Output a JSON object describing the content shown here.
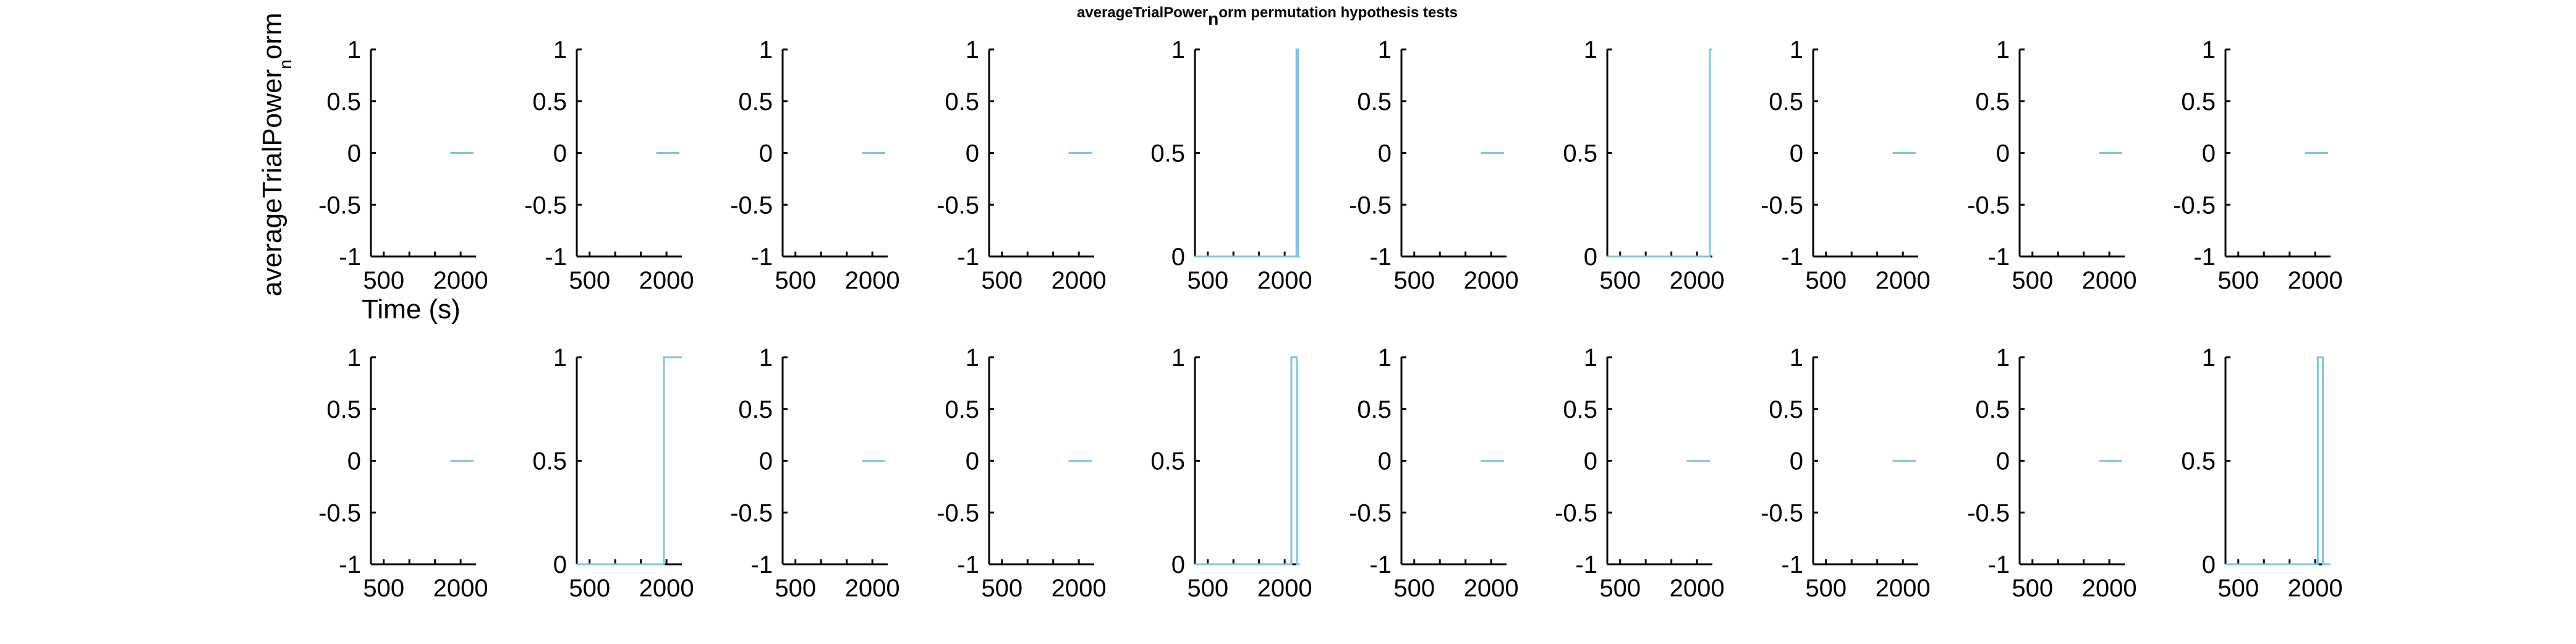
{
  "figure": {
    "title_main": "averageTrialPower",
    "title_sub": "n",
    "title_rest": "orm permutation hypothesis tests",
    "ylabel_main": "averageTrialPower",
    "ylabel_sub": "n",
    "ylabel_rest": "orm",
    "xlabel": "Time (s)",
    "line_color": "#7fc4e8"
  },
  "chart_data": [
    {
      "type": "line",
      "row": 1,
      "col": 1,
      "x": [
        1800,
        2250
      ],
      "y": [
        0,
        0
      ],
      "ylim": [
        -1,
        1
      ],
      "yticks": [
        "-1",
        "-0.5",
        "0",
        "0.5",
        "1"
      ],
      "xlim": [
        250,
        2300
      ],
      "xticks": [
        "500",
        "2000"
      ]
    },
    {
      "type": "line",
      "row": 1,
      "col": 2,
      "x": [
        1800,
        2250
      ],
      "y": [
        0,
        0
      ],
      "ylim": [
        -1,
        1
      ],
      "yticks": [
        "-1",
        "-0.5",
        "0",
        "0.5",
        "1"
      ],
      "xlim": [
        250,
        2300
      ],
      "xticks": [
        "500",
        "2000"
      ]
    },
    {
      "type": "line",
      "row": 1,
      "col": 3,
      "x": [
        1800,
        2250
      ],
      "y": [
        0,
        0
      ],
      "ylim": [
        -1,
        1
      ],
      "yticks": [
        "-1",
        "-0.5",
        "0",
        "0.5",
        "1"
      ],
      "xlim": [
        250,
        2300
      ],
      "xticks": [
        "500",
        "2000"
      ]
    },
    {
      "type": "line",
      "row": 1,
      "col": 4,
      "x": [
        1800,
        2250
      ],
      "y": [
        0,
        0
      ],
      "ylim": [
        -1,
        1
      ],
      "yticks": [
        "-1",
        "-0.5",
        "0",
        "0.5",
        "1"
      ],
      "xlim": [
        250,
        2300
      ],
      "xticks": [
        "500",
        "2000"
      ]
    },
    {
      "type": "line",
      "row": 1,
      "col": 5,
      "x": [
        250,
        2230,
        2230,
        2260,
        2260,
        2300
      ],
      "y": [
        0,
        0,
        1,
        1,
        0,
        0
      ],
      "ylim": [
        0,
        1
      ],
      "yticks": [
        "0",
        "0.5",
        "1"
      ],
      "xlim": [
        250,
        2300
      ],
      "xticks": [
        "500",
        "2000"
      ]
    },
    {
      "type": "line",
      "row": 1,
      "col": 6,
      "x": [
        1800,
        2250
      ],
      "y": [
        0,
        0
      ],
      "ylim": [
        -1,
        1
      ],
      "yticks": [
        "-1",
        "-0.5",
        "0",
        "0.5",
        "1"
      ],
      "xlim": [
        250,
        2300
      ],
      "xticks": [
        "500",
        "2000"
      ]
    },
    {
      "type": "line",
      "row": 1,
      "col": 7,
      "x": [
        250,
        2250,
        2250,
        2300
      ],
      "y": [
        0,
        0,
        1,
        1
      ],
      "ylim": [
        0,
        1
      ],
      "yticks": [
        "0",
        "0.5",
        "1"
      ],
      "xlim": [
        250,
        2300
      ],
      "xticks": [
        "500",
        "2000"
      ]
    },
    {
      "type": "line",
      "row": 1,
      "col": 8,
      "x": [
        1800,
        2250
      ],
      "y": [
        0,
        0
      ],
      "ylim": [
        -1,
        1
      ],
      "yticks": [
        "-1",
        "-0.5",
        "0",
        "0.5",
        "1"
      ],
      "xlim": [
        250,
        2300
      ],
      "xticks": [
        "500",
        "2000"
      ]
    },
    {
      "type": "line",
      "row": 1,
      "col": 9,
      "x": [
        1800,
        2250
      ],
      "y": [
        0,
        0
      ],
      "ylim": [
        -1,
        1
      ],
      "yticks": [
        "-1",
        "-0.5",
        "0",
        "0.5",
        "1"
      ],
      "xlim": [
        250,
        2300
      ],
      "xticks": [
        "500",
        "2000"
      ]
    },
    {
      "type": "line",
      "row": 1,
      "col": 10,
      "x": [
        1800,
        2250
      ],
      "y": [
        0,
        0
      ],
      "ylim": [
        -1,
        1
      ],
      "yticks": [
        "-1",
        "-0.5",
        "0",
        "0.5",
        "1"
      ],
      "xlim": [
        250,
        2300
      ],
      "xticks": [
        "500",
        "2000"
      ]
    },
    {
      "type": "line",
      "row": 2,
      "col": 1,
      "x": [
        1800,
        2250
      ],
      "y": [
        0,
        0
      ],
      "ylim": [
        -1,
        1
      ],
      "yticks": [
        "-1",
        "-0.5",
        "0",
        "0.5",
        "1"
      ],
      "xlim": [
        250,
        2300
      ],
      "xticks": [
        "500",
        "2000"
      ]
    },
    {
      "type": "line",
      "row": 2,
      "col": 2,
      "x": [
        250,
        1950,
        1950,
        2300
      ],
      "y": [
        0,
        0,
        1,
        1
      ],
      "ylim": [
        0,
        1
      ],
      "yticks": [
        "0",
        "0.5",
        "1"
      ],
      "xlim": [
        250,
        2300
      ],
      "xticks": [
        "500",
        "2000"
      ]
    },
    {
      "type": "line",
      "row": 2,
      "col": 3,
      "x": [
        1800,
        2250
      ],
      "y": [
        0,
        0
      ],
      "ylim": [
        -1,
        1
      ],
      "yticks": [
        "-1",
        "-0.5",
        "0",
        "0.5",
        "1"
      ],
      "xlim": [
        250,
        2300
      ],
      "xticks": [
        "500",
        "2000"
      ]
    },
    {
      "type": "line",
      "row": 2,
      "col": 4,
      "x": [
        1800,
        2250
      ],
      "y": [
        0,
        0
      ],
      "ylim": [
        -1,
        1
      ],
      "yticks": [
        "-1",
        "-0.5",
        "0",
        "0.5",
        "1"
      ],
      "xlim": [
        250,
        2300
      ],
      "xticks": [
        "500",
        "2000"
      ]
    },
    {
      "type": "line",
      "row": 2,
      "col": 5,
      "x": [
        250,
        2130,
        2130,
        2240,
        2240,
        2300
      ],
      "y": [
        0,
        0,
        1,
        1,
        0,
        0
      ],
      "ylim": [
        0,
        1
      ],
      "yticks": [
        "0",
        "0.5",
        "1"
      ],
      "xlim": [
        250,
        2300
      ],
      "xticks": [
        "500",
        "2000"
      ]
    },
    {
      "type": "line",
      "row": 2,
      "col": 6,
      "x": [
        1800,
        2250
      ],
      "y": [
        0,
        0
      ],
      "ylim": [
        -1,
        1
      ],
      "yticks": [
        "-1",
        "-0.5",
        "0",
        "0.5",
        "1"
      ],
      "xlim": [
        250,
        2300
      ],
      "xticks": [
        "500",
        "2000"
      ]
    },
    {
      "type": "line",
      "row": 2,
      "col": 7,
      "x": [
        1800,
        2250
      ],
      "y": [
        0,
        0
      ],
      "ylim": [
        -1,
        1
      ],
      "yticks": [
        "-1",
        "-0.5",
        "0",
        "0.5",
        "1"
      ],
      "xlim": [
        250,
        2300
      ],
      "xticks": [
        "500",
        "2000"
      ]
    },
    {
      "type": "line",
      "row": 2,
      "col": 8,
      "x": [
        1800,
        2250
      ],
      "y": [
        0,
        0
      ],
      "ylim": [
        -1,
        1
      ],
      "yticks": [
        "-1",
        "-0.5",
        "0",
        "0.5",
        "1"
      ],
      "xlim": [
        250,
        2300
      ],
      "xticks": [
        "500",
        "2000"
      ]
    },
    {
      "type": "line",
      "row": 2,
      "col": 9,
      "x": [
        1800,
        2250
      ],
      "y": [
        0,
        0
      ],
      "ylim": [
        -1,
        1
      ],
      "yticks": [
        "-1",
        "-0.5",
        "0",
        "0.5",
        "1"
      ],
      "xlim": [
        250,
        2300
      ],
      "xticks": [
        "500",
        "2000"
      ]
    },
    {
      "type": "line",
      "row": 2,
      "col": 10,
      "x": [
        250,
        2050,
        2050,
        2150,
        2150,
        2300
      ],
      "y": [
        0,
        0,
        1,
        1,
        0,
        0
      ],
      "ylim": [
        0,
        1
      ],
      "yticks": [
        "0",
        "0.5",
        "1"
      ],
      "xlim": [
        250,
        2300
      ],
      "xticks": [
        "500",
        "2000"
      ]
    }
  ]
}
